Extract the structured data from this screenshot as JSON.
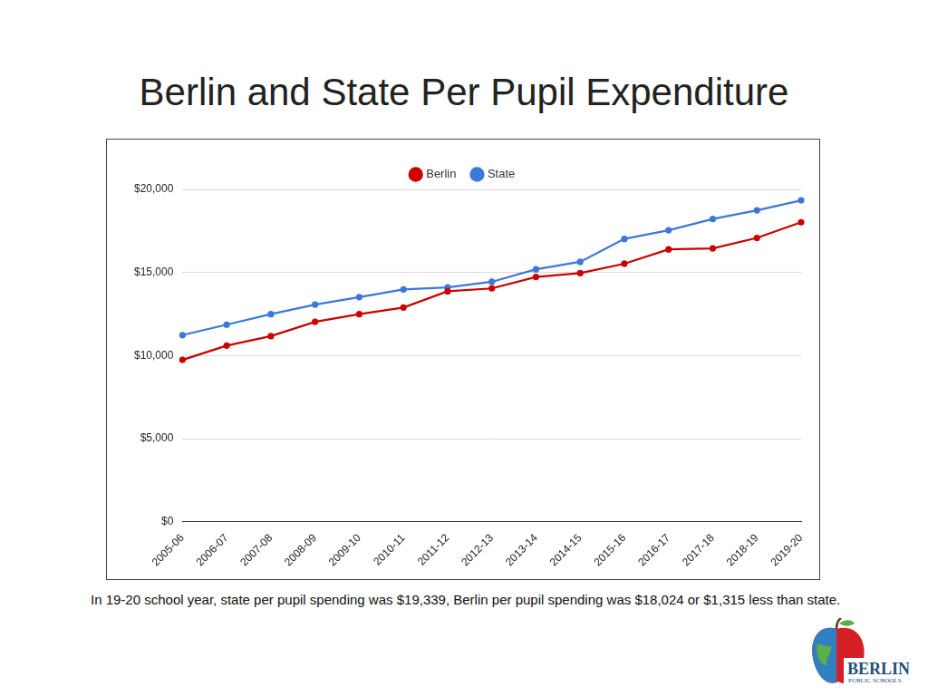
{
  "chart_data": {
    "type": "line",
    "title": "Berlin and State Per Pupil Expenditure",
    "categories": [
      "2005-06",
      "2006-07",
      "2007-08",
      "2008-09",
      "2009-10",
      "2010-11",
      "2011-12",
      "2012-13",
      "2013-14",
      "2014-15",
      "2015-16",
      "2016-17",
      "2017-18",
      "2018-19",
      "2019-20"
    ],
    "series": [
      {
        "name": "Berlin",
        "color": "#cc0000",
        "marker": "circle",
        "values": [
          9740,
          10600,
          11170,
          12030,
          12490,
          12890,
          13870,
          14040,
          14730,
          14960,
          15530,
          16390,
          16450,
          17080,
          18024
        ]
      },
      {
        "name": "State",
        "color": "#3c78d8",
        "marker": "circle",
        "values": [
          11230,
          11860,
          12490,
          13070,
          13520,
          13980,
          14100,
          14440,
          15190,
          15640,
          17020,
          17540,
          18220,
          18740,
          19339
        ]
      }
    ],
    "ylim": [
      0,
      20000
    ],
    "yticks": [
      {
        "value": 0,
        "label": "$0"
      },
      {
        "value": 5000,
        "label": "$5,000"
      },
      {
        "value": 10000,
        "label": "$10,000"
      },
      {
        "value": 15000,
        "label": "$15,000"
      },
      {
        "value": 20000,
        "label": "$20,000"
      }
    ],
    "grid": true,
    "legend": "top",
    "annotations": [
      "In 19-20 school year, state per pupil spending was $19,339, Berlin per pupil spending was $18,024 or $1,315 less than state."
    ]
  },
  "logo": {
    "name": "BERLIN",
    "subtitle": "PUBLIC SCHOOLS"
  }
}
